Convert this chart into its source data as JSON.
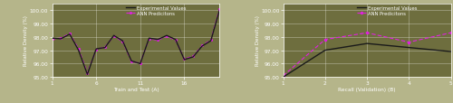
{
  "background_color": "#b5b58a",
  "plot_bg_color": "#6e6e3e",
  "grid_color": "#999966",
  "exp_color": "#1a1a1a",
  "ann_color": "#e020e0",
  "ylim": [
    95.0,
    100.5
  ],
  "yticks": [
    95.0,
    96.0,
    97.0,
    98.0,
    99.0,
    100.0
  ],
  "ylabel": "Relative Density (%)",
  "legend_exp": "Experimental Values",
  "legend_ann": "ANN Predicitons",
  "train_x": [
    1,
    2,
    3,
    4,
    5,
    6,
    7,
    8,
    9,
    10,
    11,
    12,
    13,
    14,
    15,
    16,
    17,
    18,
    19,
    20
  ],
  "train_exp": [
    97.9,
    97.85,
    98.2,
    97.0,
    95.2,
    97.1,
    97.2,
    98.1,
    97.7,
    96.2,
    96.0,
    97.9,
    97.8,
    98.1,
    97.8,
    96.3,
    96.5,
    97.3,
    97.7,
    100.0
  ],
  "train_ann": [
    97.85,
    97.9,
    98.25,
    97.1,
    95.3,
    97.05,
    97.25,
    98.05,
    97.65,
    96.15,
    96.05,
    97.85,
    97.75,
    98.05,
    97.75,
    96.35,
    96.55,
    97.35,
    97.75,
    100.1
  ],
  "train_xlabel": "Train and Test (A)",
  "train_xticks": [
    1,
    6,
    11,
    16
  ],
  "recall_x": [
    1,
    2,
    3,
    4,
    5
  ],
  "recall_exp": [
    95.0,
    97.0,
    97.5,
    97.2,
    96.9
  ],
  "recall_ann": [
    95.1,
    97.8,
    98.3,
    97.6,
    98.3
  ],
  "recall_xlabel": "Recall (Validation) (B)",
  "recall_xticks": [
    1,
    2,
    3,
    4,
    5
  ],
  "fig_width": 5.0,
  "fig_height": 1.15,
  "dpi": 100
}
